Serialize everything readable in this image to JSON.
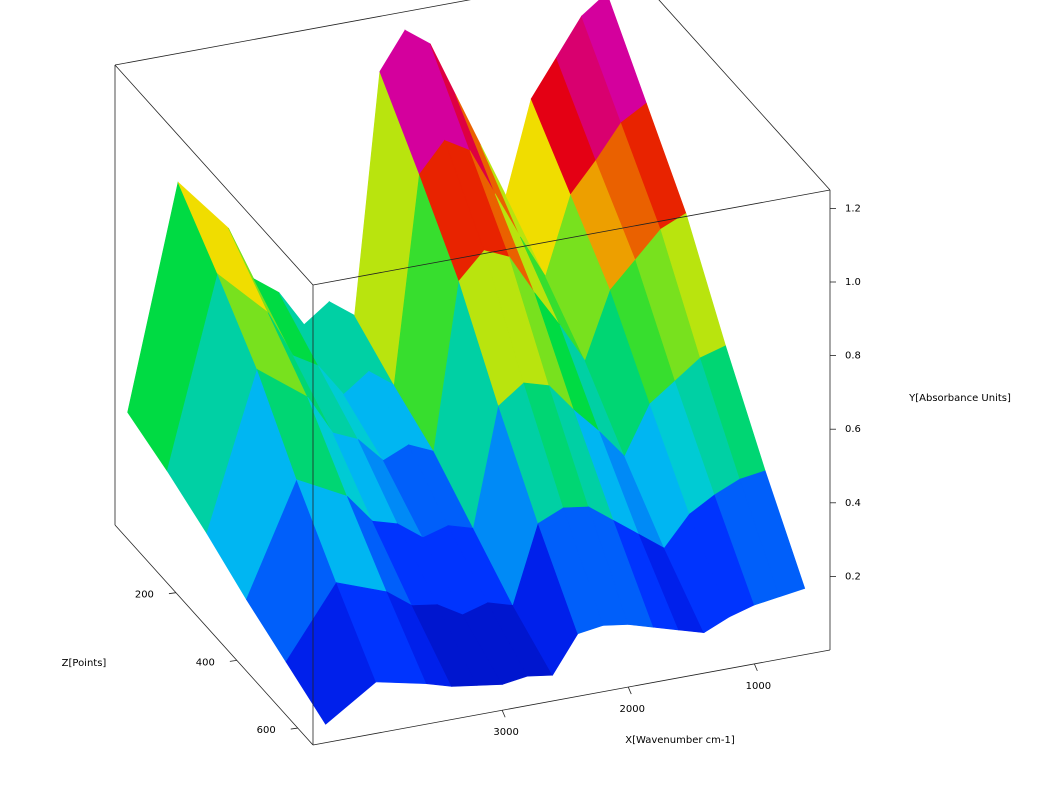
{
  "chart_data": {
    "type": "surface",
    "x_label": "X[Wavenumber cm-1]",
    "y_label": "Y[Absorbance Units]",
    "z_label": "Z[Points]",
    "xlim": [
      4500,
      400
    ],
    "xticks": [
      3000,
      2000,
      1000
    ],
    "ylim": [
      0,
      1.25
    ],
    "yticks": [
      0.2,
      0.4,
      0.6,
      0.8,
      {
        "value": 1,
        "label": "1.0"
      },
      1.2
    ],
    "zlim": [
      0,
      650
    ],
    "zticks": [
      200,
      400,
      600
    ],
    "x": [
      4400,
      4000,
      3600,
      3400,
      3200,
      3000,
      2800,
      2600,
      2400,
      2200,
      2000,
      1800,
      1600,
      1400,
      1200,
      1000,
      800,
      600
    ],
    "z": [
      0,
      130,
      260,
      390,
      520,
      650
    ],
    "values": [
      [
        0.3,
        0.9,
        0.75,
        0.6,
        0.55,
        0.45,
        0.5,
        0.45,
        1.1,
        1.2,
        1.15,
        1.0,
        0.85,
        0.7,
        0.95,
        1.05,
        1.15,
        1.2
      ],
      [
        0.26,
        0.77,
        0.64,
        0.51,
        0.47,
        0.38,
        0.43,
        0.38,
        0.94,
        1.02,
        0.98,
        0.85,
        0.72,
        0.6,
        0.81,
        0.89,
        0.98,
        1.02
      ],
      [
        0.21,
        0.63,
        0.53,
        0.42,
        0.39,
        0.32,
        0.35,
        0.32,
        0.77,
        0.84,
        0.81,
        0.7,
        0.6,
        0.49,
        0.67,
        0.74,
        0.81,
        0.84
      ],
      [
        0.15,
        0.45,
        0.38,
        0.3,
        0.28,
        0.23,
        0.25,
        0.23,
        0.55,
        0.6,
        0.58,
        0.5,
        0.43,
        0.35,
        0.48,
        0.53,
        0.58,
        0.6
      ],
      [
        0.1,
        0.29,
        0.24,
        0.19,
        0.18,
        0.14,
        0.16,
        0.14,
        0.35,
        0.38,
        0.37,
        0.32,
        0.27,
        0.22,
        0.3,
        0.34,
        0.37,
        0.38
      ],
      [
        0.05,
        0.14,
        0.11,
        0.09,
        0.08,
        0.07,
        0.08,
        0.07,
        0.17,
        0.18,
        0.17,
        0.15,
        0.13,
        0.11,
        0.14,
        0.16,
        0.17,
        0.18
      ]
    ]
  }
}
